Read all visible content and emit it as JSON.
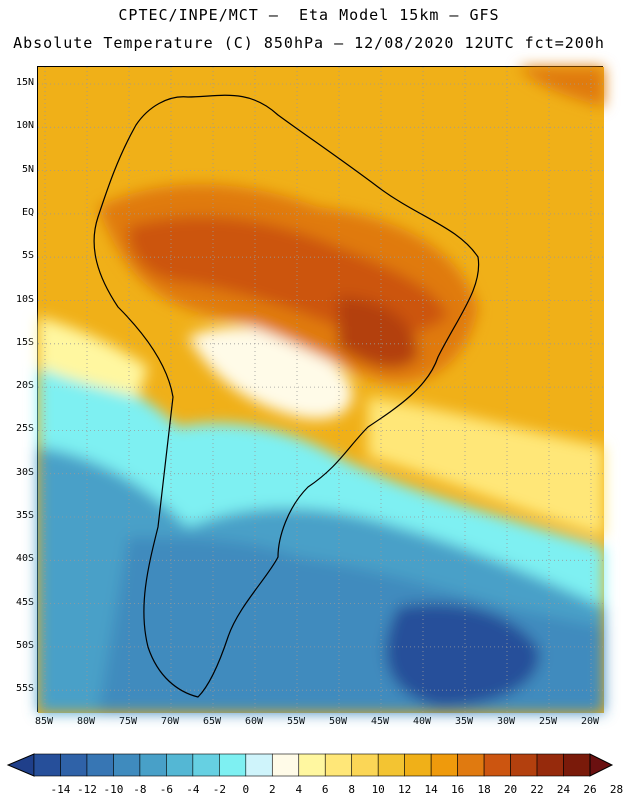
{
  "header": {
    "line1": "CPTEC/INPE/MCT –  Eta Model 15km – GFS",
    "line2": "Absolute Temperature (C) 850hPa – 12/08/2020 12UTC fct=200h"
  },
  "map": {
    "lat_labels": [
      "15N",
      "10N",
      "5N",
      "EQ",
      "5S",
      "10S",
      "15S",
      "20S",
      "25S",
      "30S",
      "35S",
      "40S",
      "45S",
      "50S",
      "55S"
    ],
    "lon_labels": [
      "85W",
      "80W",
      "75W",
      "70W",
      "65W",
      "60W",
      "55W",
      "50W",
      "45W",
      "40W",
      "35W",
      "30W",
      "25W",
      "20W"
    ]
  },
  "colorbar": {
    "ticks": [
      "-14",
      "-12",
      "-10",
      "-8",
      "-6",
      "-4",
      "-2",
      "0",
      "2",
      "4",
      "6",
      "8",
      "10",
      "12",
      "14",
      "16",
      "18",
      "20",
      "22",
      "24",
      "26",
      "28"
    ],
    "colors": [
      "#1f3f8a",
      "#264f9a",
      "#2f62a8",
      "#3776b4",
      "#3f8bbe",
      "#48a0c8",
      "#54b7d4",
      "#66d0e2",
      "#7ef0f2",
      "#cff4fb",
      "#fffbe8",
      "#fff7a0",
      "#ffe778",
      "#fbd656",
      "#f3c432",
      "#f0b018",
      "#ef9a0c",
      "#e07a10",
      "#cc5510",
      "#b3400e",
      "#962a0c",
      "#7a1a0a",
      "#6a1010"
    ]
  }
}
